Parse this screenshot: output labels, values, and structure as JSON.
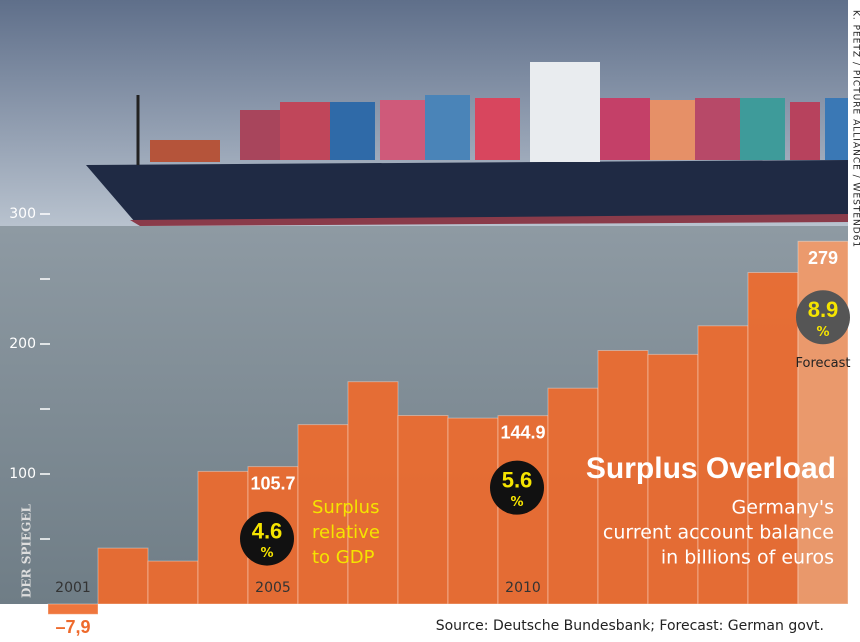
{
  "chart_data": {
    "type": "bar",
    "title": "Surplus Overload",
    "subtitle_lines": [
      "Germany's",
      "current account balance",
      "in billions of euros"
    ],
    "categories": [
      "2001",
      null,
      null,
      null,
      "2005",
      null,
      null,
      null,
      null,
      "2010",
      null,
      null,
      null,
      null,
      null,
      null
    ],
    "values": [
      -7.9,
      43,
      33,
      102,
      105.7,
      138,
      171,
      145,
      143,
      144.9,
      166,
      195,
      192,
      214,
      255,
      279
    ],
    "value_labels": [
      "–7,9",
      null,
      null,
      null,
      "105.7",
      null,
      null,
      null,
      null,
      "144.9",
      null,
      null,
      null,
      null,
      null,
      "279"
    ],
    "color": "#ee6a2c",
    "forecast_color": "#f39a68",
    "forecast_index": 15,
    "forecast_label": "Forecast",
    "gdp_share": [
      null,
      null,
      null,
      null,
      4.6,
      null,
      null,
      null,
      null,
      5.6,
      null,
      null,
      null,
      null,
      null,
      8.9
    ],
    "gdp_unit": "%",
    "gdp_label_lines": [
      "Surplus",
      "relative",
      "to GDP"
    ],
    "ylim": [
      -10,
      320
    ],
    "yticks": [
      100,
      200,
      300
    ],
    "minor_yticks": [
      50,
      150,
      250
    ],
    "source": "Source: Deutsche Bundesbank; Forecast: German govt.",
    "photo_credit": "K. PEETZ / PICTURE ALLIANCE / WESTEND61",
    "publisher": "DER SPIEGEL"
  }
}
